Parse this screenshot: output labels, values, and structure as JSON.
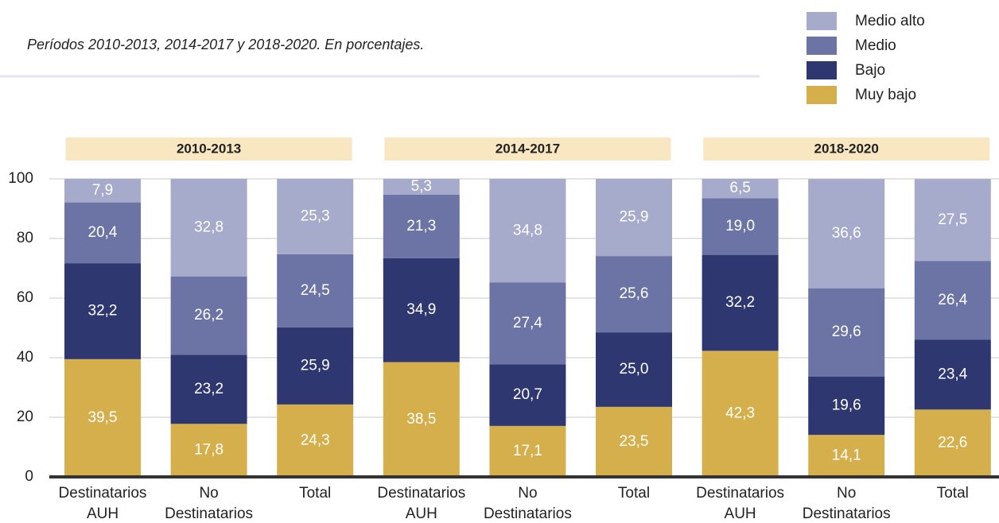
{
  "chart_data": {
    "type": "stacked_bar",
    "subtitle": "Períodos 2010-2013, 2014-2017 y 2018-2020. En porcentajes.",
    "groups": [
      "2010-2013",
      "2014-2017",
      "2018-2020"
    ],
    "categories": [
      "Destinatarios AUH",
      "No Destinatarios",
      "Total",
      "Destinatarios AUH",
      "No Destinatarios",
      "Total",
      "Destinatarios AUH",
      "No Destinatarios",
      "Total"
    ],
    "series": [
      {
        "name": "Muy bajo",
        "color": "#d4af4b",
        "values": [
          39.5,
          17.8,
          24.3,
          38.5,
          17.1,
          23.5,
          42.3,
          14.1,
          22.6
        ],
        "value_labels": [
          "39,5",
          "17,8",
          "24,3",
          "38,5",
          "17,1",
          "23,5",
          "42,3",
          "14,1",
          "22,6"
        ]
      },
      {
        "name": "Bajo",
        "color": "#2e3770",
        "values": [
          32.2,
          23.2,
          25.9,
          34.9,
          20.7,
          25.0,
          32.2,
          19.6,
          23.4
        ],
        "value_labels": [
          "32,2",
          "23,2",
          "25,9",
          "34,9",
          "20,7",
          "25,0",
          "32,2",
          "19,6",
          "23,4"
        ]
      },
      {
        "name": "Medio",
        "color": "#6b74a4",
        "values": [
          20.4,
          26.2,
          24.5,
          21.3,
          27.4,
          25.6,
          19.0,
          29.6,
          26.4
        ],
        "value_labels": [
          "20,4",
          "26,2",
          "24,5",
          "21,3",
          "27,4",
          "25,6",
          "19,0",
          "29,6",
          "26,4"
        ]
      },
      {
        "name": "Medio alto",
        "color": "#a6aacb",
        "values": [
          7.9,
          32.8,
          25.3,
          5.3,
          34.8,
          25.9,
          6.5,
          36.6,
          27.5
        ],
        "value_labels": [
          "7,9",
          "32,8",
          "25,3",
          "5,3",
          "34,8",
          "25,9",
          "6,5",
          "36,6",
          "27,5"
        ]
      }
    ],
    "ylim": [
      0,
      100
    ],
    "yticks": [
      0,
      20,
      40,
      60,
      80,
      100
    ],
    "grid": true
  }
}
